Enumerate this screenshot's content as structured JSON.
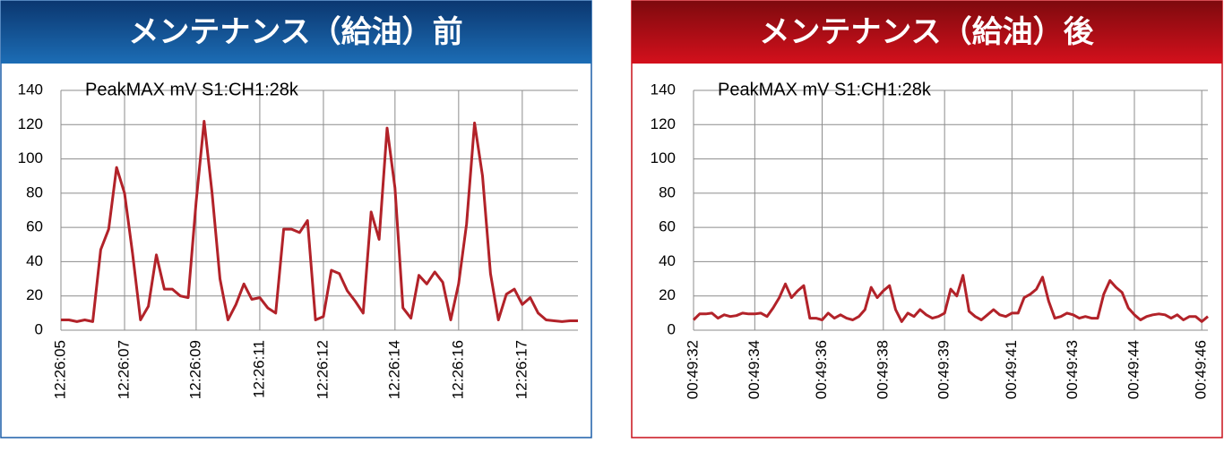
{
  "chart_data": [
    {
      "type": "line",
      "title": "メンテナンス（給油）前",
      "annotation": "PeakMAX mV S1:CH1:28k",
      "color": "#b22229",
      "ylim": [
        0,
        140
      ],
      "yticks": [
        0,
        20,
        40,
        60,
        80,
        100,
        120,
        140
      ],
      "grid": true,
      "categories": [
        "12:26:05",
        null,
        null,
        null,
        null,
        null,
        null,
        null,
        "12:26:07",
        null,
        null,
        null,
        null,
        null,
        null,
        null,
        null,
        "12:26:09",
        null,
        null,
        null,
        null,
        null,
        null,
        null,
        "12:26:11",
        null,
        null,
        null,
        null,
        null,
        null,
        null,
        "12:26:12",
        null,
        null,
        null,
        null,
        null,
        null,
        null,
        null,
        "12:26:14",
        null,
        null,
        null,
        null,
        null,
        null,
        null,
        "12:26:16",
        null,
        null,
        null,
        null,
        null,
        null,
        null,
        "12:26:17",
        null,
        null,
        null,
        null,
        null,
        null,
        null
      ],
      "values": [
        6,
        6,
        5,
        6,
        5,
        47,
        59,
        95,
        80,
        45,
        6,
        14,
        44,
        24,
        24,
        20,
        19,
        75,
        122,
        80,
        30,
        6,
        15,
        27,
        18,
        19,
        13,
        10,
        59,
        59,
        57,
        64,
        6,
        8,
        35,
        33,
        23,
        17,
        10,
        69,
        53,
        118,
        83,
        13,
        7,
        32,
        27,
        34,
        28,
        6,
        27,
        62,
        121,
        90,
        33,
        6,
        21,
        24,
        15,
        19,
        10,
        6,
        5.5,
        5,
        5.5,
        5.5
      ]
    },
    {
      "type": "line",
      "title": "メンテナンス（給油）後",
      "annotation": "PeakMAX mV S1:CH1:28k",
      "color": "#b22229",
      "ylim": [
        0,
        140
      ],
      "yticks": [
        0,
        20,
        40,
        60,
        80,
        100,
        120,
        140
      ],
      "grid": true,
      "categories": [
        "00:49:32",
        null,
        null,
        null,
        null,
        null,
        null,
        null,
        null,
        null,
        "00:49:34",
        null,
        null,
        null,
        null,
        null,
        null,
        null,
        null,
        null,
        null,
        "00:49:36",
        null,
        null,
        null,
        null,
        null,
        null,
        null,
        null,
        null,
        "00:49:38",
        null,
        null,
        null,
        null,
        null,
        null,
        null,
        null,
        null,
        "00:49:39",
        null,
        null,
        null,
        null,
        null,
        null,
        null,
        null,
        null,
        null,
        "00:49:41",
        null,
        null,
        null,
        null,
        null,
        null,
        null,
        null,
        null,
        "00:49:43",
        null,
        null,
        null,
        null,
        null,
        null,
        null,
        null,
        null,
        "00:49:44",
        null,
        null,
        null,
        null,
        null,
        null,
        null,
        null,
        null,
        null,
        "00:49:46",
        null
      ],
      "values": [
        6,
        9.5,
        9.5,
        10,
        7,
        9,
        8,
        8.5,
        10,
        9.5,
        9.5,
        10,
        8,
        13,
        19,
        27,
        19,
        23,
        26,
        7,
        7,
        6,
        10,
        7,
        9,
        7,
        6,
        8,
        12,
        25,
        19,
        23,
        26,
        12,
        5,
        10,
        8,
        12,
        9,
        7,
        8,
        10,
        24,
        20,
        32,
        11,
        8,
        6,
        9,
        12,
        9,
        8,
        10,
        10,
        19,
        21,
        24,
        31,
        17,
        7,
        8,
        10,
        9,
        7,
        8,
        7,
        7,
        21,
        29,
        25,
        22,
        13,
        9,
        6,
        8,
        9,
        9.5,
        9,
        7,
        9,
        6,
        8,
        8,
        5,
        8
      ]
    }
  ]
}
